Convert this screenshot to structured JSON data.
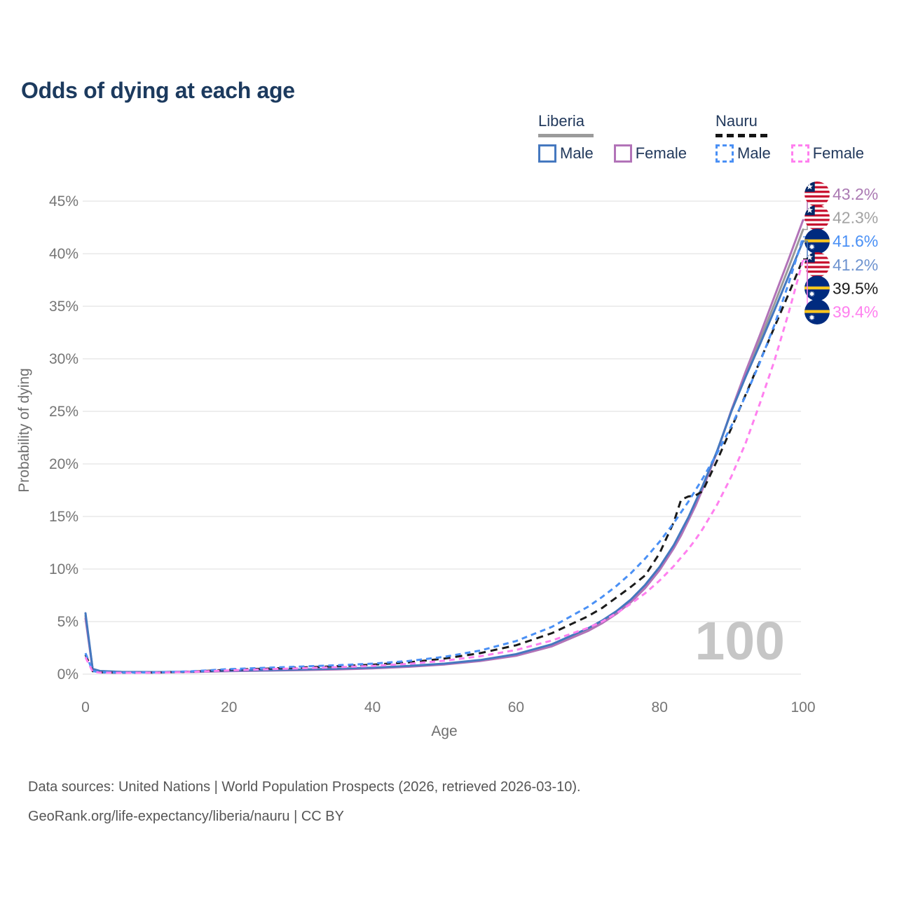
{
  "title": "Odds of dying at each age",
  "legend": {
    "groups": [
      {
        "country": "Liberia",
        "style": "solid",
        "underline_color": "#9b9b9b",
        "items": [
          {
            "label": "Male",
            "color": "#4578bf",
            "dashed": false
          },
          {
            "label": "Female",
            "color": "#b273b8",
            "dashed": false
          }
        ]
      },
      {
        "country": "Nauru",
        "style": "dashed",
        "underline_color": "#151515",
        "items": [
          {
            "label": "Male",
            "color": "#4a90f5",
            "dashed": true
          },
          {
            "label": "Female",
            "color": "#ff80ef",
            "dashed": true
          }
        ]
      }
    ]
  },
  "watermark": "100",
  "footer": {
    "line1": "Data sources: United Nations | World Population Prospects (2026, retrieved 2026-03-10).",
    "line2": "GeoRank.org/life-expectancy/liberia/nauru | CC BY"
  },
  "chart_data": {
    "type": "line",
    "title": "Odds of dying at each age",
    "xlabel": "Age",
    "ylabel": "Probability of dying",
    "xlim": [
      0,
      100
    ],
    "ylim": [
      0,
      45
    ],
    "xticks": [
      0,
      20,
      40,
      60,
      80,
      100
    ],
    "ytick_values": [
      0,
      5,
      10,
      15,
      20,
      25,
      30,
      35,
      40,
      45
    ],
    "ytick_labels": [
      "0%",
      "5%",
      "10%",
      "15%",
      "20%",
      "25%",
      "30%",
      "35%",
      "40%",
      "45%"
    ],
    "grid": "horizontal",
    "legend_position": "top-right",
    "x": [
      0,
      1,
      2,
      5,
      10,
      15,
      20,
      25,
      30,
      35,
      40,
      45,
      50,
      55,
      60,
      65,
      70,
      72,
      74,
      76,
      78,
      80,
      82,
      83,
      84,
      85,
      86,
      88,
      90,
      92,
      94,
      96,
      98,
      100
    ],
    "series": [
      {
        "name": "Liberia Female",
        "country": "Liberia",
        "sex": "Female",
        "color": "#b273b8",
        "label_color": "#ab7ab3",
        "dash": "solid",
        "flag": "liberia",
        "end_label": "43.2%",
        "values": [
          5.3,
          0.45,
          0.28,
          0.2,
          0.18,
          0.21,
          0.28,
          0.33,
          0.38,
          0.45,
          0.55,
          0.7,
          0.92,
          1.25,
          1.75,
          2.65,
          4.1,
          4.85,
          5.75,
          6.85,
          8.2,
          9.9,
          12.0,
          13.2,
          14.6,
          16.0,
          17.6,
          21.1,
          25.1,
          28.8,
          32.3,
          35.9,
          39.5,
          43.2
        ]
      },
      {
        "name": "Liberia",
        "country": "Liberia",
        "sex": "Both",
        "color": "#9a9a9a",
        "label_color": "#a3a3a3",
        "dash": "solid",
        "flag": "liberia",
        "end_label": "42.3%",
        "values": [
          5.55,
          0.48,
          0.29,
          0.21,
          0.19,
          0.22,
          0.3,
          0.35,
          0.41,
          0.48,
          0.58,
          0.74,
          0.96,
          1.3,
          1.82,
          2.75,
          4.2,
          4.95,
          5.85,
          6.95,
          8.35,
          10.05,
          12.15,
          13.4,
          14.75,
          16.2,
          17.75,
          21.15,
          25.0,
          28.5,
          31.8,
          35.2,
          38.7,
          42.3
        ]
      },
      {
        "name": "Nauru Male",
        "country": "Nauru",
        "sex": "Male",
        "color": "#4a90f5",
        "label_color": "#4a90f5",
        "dash": "dashed",
        "flag": "nauru",
        "end_label": "41.6%",
        "values": [
          2.0,
          0.3,
          0.18,
          0.15,
          0.16,
          0.28,
          0.48,
          0.6,
          0.72,
          0.85,
          1.0,
          1.25,
          1.65,
          2.25,
          3.15,
          4.5,
          6.4,
          7.35,
          8.4,
          9.6,
          11.0,
          12.6,
          14.4,
          15.4,
          16.4,
          17.5,
          18.6,
          21.0,
          23.6,
          26.5,
          29.7,
          33.2,
          37.2,
          41.6
        ]
      },
      {
        "name": "Liberia Male",
        "country": "Liberia",
        "sex": "Male",
        "color": "#4578bf",
        "label_color": "#6e93cf",
        "dash": "solid",
        "flag": "liberia",
        "end_label": "41.2%",
        "values": [
          5.8,
          0.5,
          0.3,
          0.22,
          0.2,
          0.24,
          0.33,
          0.38,
          0.44,
          0.52,
          0.62,
          0.78,
          1.0,
          1.35,
          1.9,
          2.85,
          4.35,
          5.1,
          6.0,
          7.1,
          8.5,
          10.2,
          12.3,
          13.6,
          14.9,
          16.4,
          17.9,
          21.2,
          25.0,
          28.3,
          31.4,
          34.6,
          37.9,
          41.2
        ]
      },
      {
        "name": "Nauru",
        "country": "Nauru",
        "sex": "Both",
        "color": "#1b1b1b",
        "label_color": "#1b1b1b",
        "dash": "dashed",
        "flag": "nauru",
        "end_label": "39.5%",
        "values": [
          1.85,
          0.28,
          0.17,
          0.14,
          0.15,
          0.25,
          0.42,
          0.52,
          0.63,
          0.75,
          0.9,
          1.12,
          1.48,
          2.0,
          2.75,
          3.9,
          5.5,
          6.3,
          7.3,
          8.3,
          9.4,
          11.5,
          14.5,
          16.6,
          16.9,
          17.0,
          17.4,
          20.3,
          23.4,
          26.6,
          29.8,
          33.0,
          36.2,
          39.5
        ]
      },
      {
        "name": "Nauru Female",
        "country": "Nauru",
        "sex": "Female",
        "color": "#ff80ef",
        "label_color": "#ff80ef",
        "dash": "dashed",
        "flag": "nauru",
        "end_label": "39.4%",
        "values": [
          1.6,
          0.25,
          0.15,
          0.13,
          0.14,
          0.22,
          0.36,
          0.46,
          0.56,
          0.66,
          0.78,
          0.98,
          1.28,
          1.7,
          2.3,
          3.2,
          4.4,
          5.0,
          5.8,
          6.7,
          7.7,
          8.9,
          10.3,
          11.1,
          11.9,
          12.8,
          13.8,
          16.1,
          18.8,
          22.0,
          25.8,
          29.8,
          34.4,
          39.4
        ]
      }
    ]
  }
}
